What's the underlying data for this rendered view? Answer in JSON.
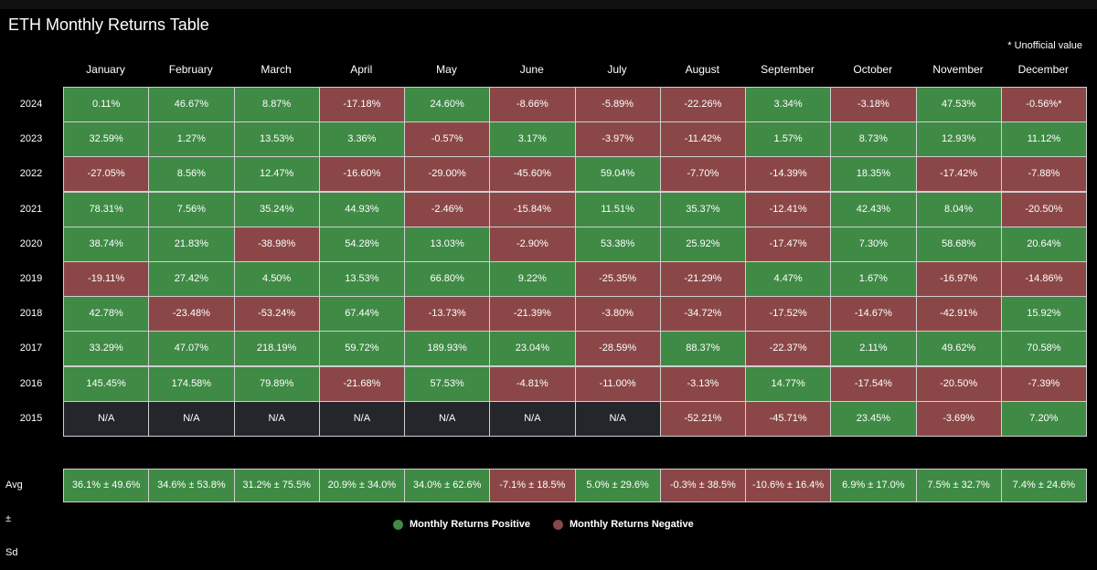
{
  "title": "ETH Monthly Returns Table",
  "note": "* Unofficial value",
  "colors": {
    "positive": "#3f8a45",
    "negative": "#8b4747",
    "na": "#25262b",
    "border": "#cfcfcf"
  },
  "legend": [
    {
      "label": "Monthly Returns Positive",
      "color": "#3f8a45"
    },
    {
      "label": "Monthly Returns Negative",
      "color": "#8b4747"
    }
  ],
  "chart_data": {
    "type": "table",
    "title": "ETH Monthly Returns Table",
    "columns": [
      "January",
      "February",
      "March",
      "April",
      "May",
      "June",
      "July",
      "August",
      "September",
      "October",
      "November",
      "December"
    ],
    "rows": [
      {
        "year": "2024",
        "values": [
          "0.11%",
          "46.67%",
          "8.87%",
          "-17.18%",
          "24.60%",
          "-8.66%",
          "-5.89%",
          "-22.26%",
          "3.34%",
          "-3.18%",
          "47.53%",
          "-0.56%*"
        ]
      },
      {
        "year": "2023",
        "values": [
          "32.59%",
          "1.27%",
          "13.53%",
          "3.36%",
          "-0.57%",
          "3.17%",
          "-3.97%",
          "-11.42%",
          "1.57%",
          "8.73%",
          "12.93%",
          "11.12%"
        ]
      },
      {
        "year": "2022",
        "values": [
          "-27.05%",
          "8.56%",
          "12.47%",
          "-16.60%",
          "-29.00%",
          "-45.60%",
          "59.04%",
          "-7.70%",
          "-14.39%",
          "18.35%",
          "-17.42%",
          "-7.88%"
        ]
      },
      {
        "year": "2021",
        "values": [
          "78.31%",
          "7.56%",
          "35.24%",
          "44.93%",
          "-2.46%",
          "-15.84%",
          "11.51%",
          "35.37%",
          "-12.41%",
          "42.43%",
          "8.04%",
          "-20.50%"
        ]
      },
      {
        "year": "2020",
        "values": [
          "38.74%",
          "21.83%",
          "-38.98%",
          "54.28%",
          "13.03%",
          "-2.90%",
          "53.38%",
          "25.92%",
          "-17.47%",
          "7.30%",
          "58.68%",
          "20.64%"
        ]
      },
      {
        "year": "2019",
        "values": [
          "-19.11%",
          "27.42%",
          "4.50%",
          "13.53%",
          "66.80%",
          "9.22%",
          "-25.35%",
          "-21.29%",
          "4.47%",
          "1.67%",
          "-16.97%",
          "-14.86%"
        ]
      },
      {
        "year": "2018",
        "values": [
          "42.78%",
          "-23.48%",
          "-53.24%",
          "67.44%",
          "-13.73%",
          "-21.39%",
          "-3.80%",
          "-34.72%",
          "-17.52%",
          "-14.67%",
          "-42.91%",
          "15.92%"
        ]
      },
      {
        "year": "2017",
        "values": [
          "33.29%",
          "47.07%",
          "218.19%",
          "59.72%",
          "189.93%",
          "23.04%",
          "-28.59%",
          "88.37%",
          "-22.37%",
          "2.11%",
          "49.62%",
          "70.58%"
        ]
      },
      {
        "year": "2016",
        "values": [
          "145.45%",
          "174.58%",
          "79.89%",
          "-21.68%",
          "57.53%",
          "-4.81%",
          "-11.00%",
          "-3.13%",
          "14.77%",
          "-17.54%",
          "-20.50%",
          "-7.39%"
        ]
      },
      {
        "year": "2015",
        "values": [
          "N/A",
          "N/A",
          "N/A",
          "N/A",
          "N/A",
          "N/A",
          "N/A",
          "-52.21%",
          "-45.71%",
          "23.45%",
          "-3.69%",
          "7.20%"
        ]
      }
    ],
    "summary": {
      "label": "Avg ± Sd",
      "values": [
        "36.1% ± 49.6%",
        "34.6% ± 53.8%",
        "31.2% ± 75.5%",
        "20.9% ± 34.0%",
        "34.0% ± 62.6%",
        "-7.1% ± 18.5%",
        "5.0% ± 29.6%",
        "-0.3% ± 38.5%",
        "-10.6% ± 16.4%",
        "6.9% ± 17.0%",
        "7.5% ± 32.7%",
        "7.4% ± 24.6%"
      ]
    }
  }
}
